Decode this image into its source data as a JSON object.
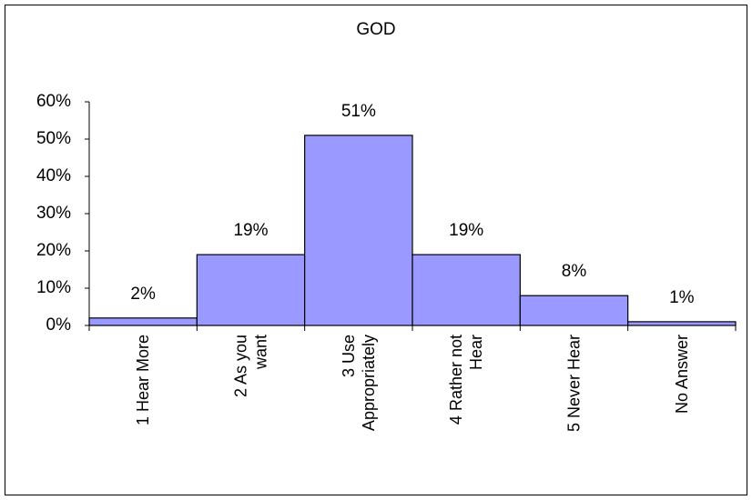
{
  "chart_data": {
    "type": "bar",
    "title": "GOD",
    "categories": [
      "1 Hear More",
      "2 As you\nwant",
      "3 Use\nAppropriately",
      "4 Rather not\nHear",
      "5 Never Hear",
      "No Answer"
    ],
    "values": [
      2,
      19,
      51,
      19,
      8,
      1
    ],
    "value_labels": [
      "2%",
      "19%",
      "51%",
      "19%",
      "8%",
      "1%"
    ],
    "color": "#9999ff",
    "ylim": [
      0,
      60
    ],
    "yticks": [
      {
        "value": 0,
        "label": "0%"
      },
      {
        "value": 10,
        "label": "10%"
      },
      {
        "value": 20,
        "label": "20%"
      },
      {
        "value": 30,
        "label": "30%"
      },
      {
        "value": 40,
        "label": "40%"
      },
      {
        "value": 50,
        "label": "50%"
      },
      {
        "value": 60,
        "label": "60%"
      }
    ],
    "grid": false
  }
}
